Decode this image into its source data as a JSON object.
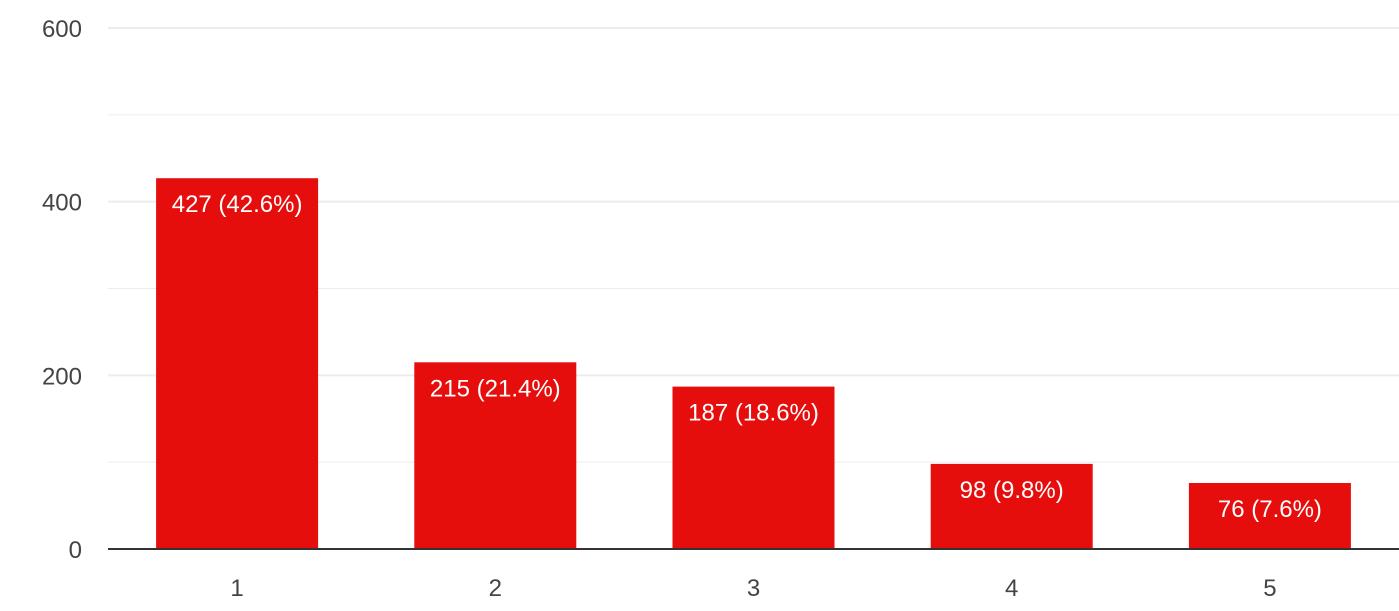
{
  "chart_data": {
    "type": "bar",
    "title": "",
    "xlabel": "",
    "ylabel": "",
    "categories": [
      "1",
      "2",
      "3",
      "4",
      "5"
    ],
    "values": [
      427,
      215,
      187,
      98,
      76
    ],
    "data_labels": [
      "427 (42.6%)",
      "215 (21.4%)",
      "187 (18.6%)",
      "98 (9.8%)",
      "76 (7.6%)"
    ],
    "ylim": [
      0,
      600
    ],
    "yticks": [
      0,
      200,
      400,
      600
    ],
    "ytick_labels": [
      "0",
      "200",
      "400",
      "600"
    ],
    "minor_gridlines": [
      100,
      300,
      500
    ],
    "grid": true,
    "legend": "none",
    "bar_color": "#e60d0d",
    "grid_color": "#ececec",
    "axis_color": "#333333"
  }
}
